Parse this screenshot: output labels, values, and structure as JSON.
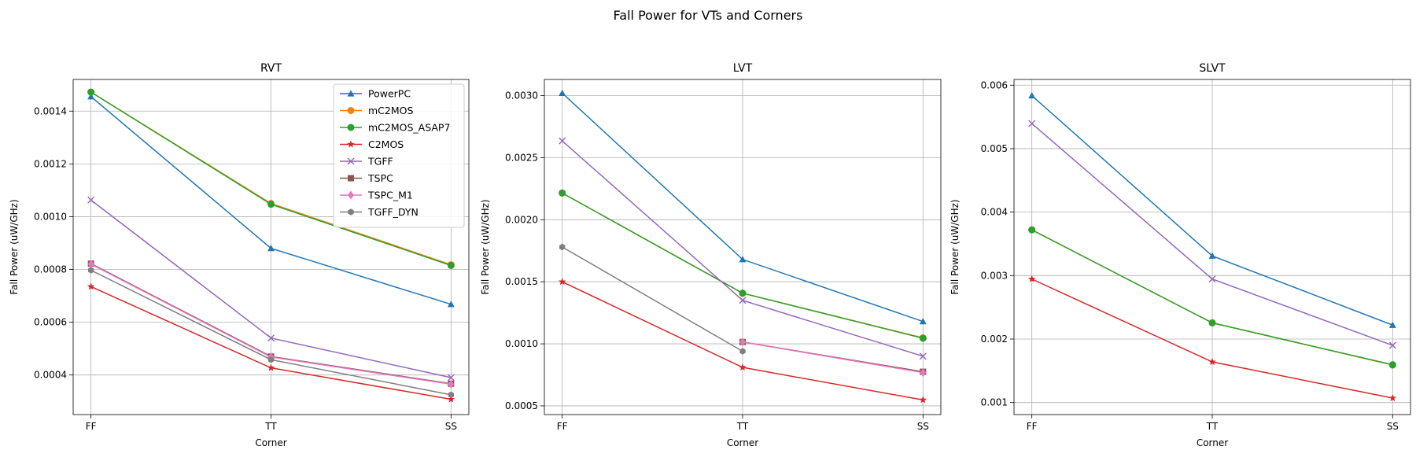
{
  "figure": {
    "title": "Fall Power for VTs and Corners"
  },
  "legend": {
    "placement": "upper-right of first subplot"
  },
  "chart_data": [
    {
      "type": "line",
      "title": "RVT",
      "xlabel": "Corner",
      "ylabel": "Fall Power (uW/GHz)",
      "categories": [
        "FF",
        "TT",
        "SS"
      ],
      "ylim": [
        0.00025,
        0.00152
      ],
      "yticks": [
        0.0004,
        0.0006,
        0.0008,
        0.001,
        0.0012,
        0.0014
      ],
      "ytick_labels": [
        "0.0004",
        "0.0006",
        "0.0008",
        "0.0010",
        "0.0012",
        "0.0014"
      ],
      "grid": true,
      "series": [
        {
          "name": "PowerPC",
          "color": "#1f77b4",
          "marker": "triangle",
          "values": [
            0.001455,
            0.00088,
            0.000668
          ]
        },
        {
          "name": "mC2MOS",
          "color": "#ff7f0e",
          "marker": "circle",
          "values": [
            0.001472,
            0.00105,
            0.000818
          ]
        },
        {
          "name": "mC2MOS_ASAP7",
          "color": "#2ca02c",
          "marker": "circle",
          "values": [
            0.001472,
            0.001047,
            0.000815
          ]
        },
        {
          "name": "C2MOS",
          "color": "#d62728",
          "marker": "star",
          "values": [
            0.000735,
            0.000427,
            0.000308
          ]
        },
        {
          "name": "TGFF",
          "color": "#9467bd",
          "marker": "x",
          "values": [
            0.001063,
            0.00054,
            0.00039
          ]
        },
        {
          "name": "TSPC",
          "color": "#8c564b",
          "marker": "square",
          "values": [
            0.000822,
            0.00047,
            0.000367
          ]
        },
        {
          "name": "TSPC_M1",
          "color": "#e377c2",
          "marker": "diamond",
          "values": [
            0.00082,
            0.000468,
            0.000365
          ]
        },
        {
          "name": "TGFF_DYN",
          "color": "#7f7f7f",
          "marker": "hexagon",
          "values": [
            0.000797,
            0.000458,
            0.000325
          ]
        }
      ]
    },
    {
      "type": "line",
      "title": "LVT",
      "xlabel": "Corner",
      "ylabel": "Fall Power (uW/GHz)",
      "categories": [
        "FF",
        "TT",
        "SS"
      ],
      "ylim": [
        0.00043,
        0.00313
      ],
      "yticks": [
        0.0005,
        0.001,
        0.0015,
        0.002,
        0.0025,
        0.003
      ],
      "ytick_labels": [
        "0.0005",
        "0.0010",
        "0.0015",
        "0.0020",
        "0.0025",
        "0.0030"
      ],
      "grid": true,
      "series": [
        {
          "name": "PowerPC",
          "color": "#1f77b4",
          "marker": "triangle",
          "values": [
            0.00302,
            0.00168,
            0.00118
          ]
        },
        {
          "name": "mC2MOS",
          "color": "#ff7f0e",
          "marker": "circle",
          "values": [
            0.002215,
            0.001408,
            0.001048
          ]
        },
        {
          "name": "mC2MOS_ASAP7",
          "color": "#2ca02c",
          "marker": "circle",
          "values": [
            0.002215,
            0.001408,
            0.001045
          ]
        },
        {
          "name": "C2MOS",
          "color": "#d62728",
          "marker": "star",
          "values": [
            0.0015,
            0.00081,
            0.000548
          ]
        },
        {
          "name": "TGFF",
          "color": "#9467bd",
          "marker": "x",
          "values": [
            0.002635,
            0.00135,
            0.0009
          ]
        },
        {
          "name": "TSPC",
          "color": "#8c564b",
          "marker": "square",
          "values": [
            null,
            0.001015,
            0.000775
          ]
        },
        {
          "name": "TSPC_M1",
          "color": "#e377c2",
          "marker": "diamond",
          "values": [
            null,
            0.001015,
            0.000768
          ]
        },
        {
          "name": "TGFF_DYN",
          "color": "#7f7f7f",
          "marker": "hexagon",
          "values": [
            0.00178,
            0.00094,
            null
          ]
        }
      ]
    },
    {
      "type": "line",
      "title": "SLVT",
      "xlabel": "Corner",
      "ylabel": "Fall Power (uW/GHz)",
      "categories": [
        "FF",
        "TT",
        "SS"
      ],
      "ylim": [
        0.00081,
        0.00609
      ],
      "yticks": [
        0.001,
        0.002,
        0.003,
        0.004,
        0.005,
        0.006
      ],
      "ytick_labels": [
        "0.001",
        "0.002",
        "0.003",
        "0.004",
        "0.005",
        "0.006"
      ],
      "grid": true,
      "series": [
        {
          "name": "PowerPC",
          "color": "#1f77b4",
          "marker": "triangle",
          "values": [
            0.005835,
            0.00331,
            0.00222
          ]
        },
        {
          "name": "mC2MOS",
          "color": "#ff7f0e",
          "marker": "circle",
          "values": [
            0.00372,
            0.002255,
            0.00159
          ]
        },
        {
          "name": "mC2MOS_ASAP7",
          "color": "#2ca02c",
          "marker": "circle",
          "values": [
            0.00372,
            0.002255,
            0.001595
          ]
        },
        {
          "name": "C2MOS",
          "color": "#d62728",
          "marker": "star",
          "values": [
            0.002945,
            0.00164,
            0.00107
          ]
        },
        {
          "name": "TGFF",
          "color": "#9467bd",
          "marker": "x",
          "values": [
            0.005395,
            0.002945,
            0.0019
          ]
        }
      ]
    }
  ]
}
